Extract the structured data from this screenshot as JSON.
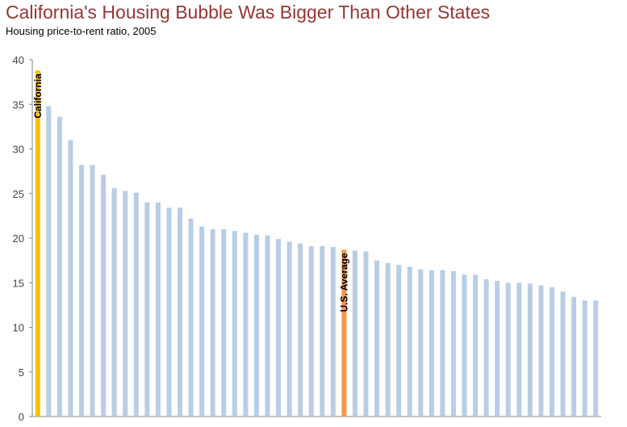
{
  "chart_data": {
    "type": "bar",
    "title": "California's Housing Bubble Was Bigger Than Other States",
    "subtitle": "Housing price-to-rent ratio, 2005",
    "xlabel": "",
    "ylabel": "",
    "ylim": [
      0,
      40
    ],
    "yticks": [
      "0",
      "5",
      "10",
      "15",
      "20",
      "25",
      "30",
      "35",
      "40"
    ],
    "grid": false,
    "values": [
      38.8,
      34.8,
      33.6,
      31.0,
      28.2,
      28.2,
      27.1,
      25.6,
      25.3,
      25.1,
      24.0,
      24.0,
      23.4,
      23.4,
      22.2,
      21.3,
      21.0,
      21.0,
      20.8,
      20.6,
      20.4,
      20.3,
      19.9,
      19.6,
      19.4,
      19.1,
      19.1,
      19.0,
      18.7,
      18.6,
      18.5,
      17.5,
      17.2,
      17.0,
      16.8,
      16.5,
      16.4,
      16.4,
      16.3,
      15.9,
      15.9,
      15.4,
      15.2,
      15.0,
      15.0,
      14.9,
      14.7,
      14.5,
      14.0,
      13.4,
      13.0,
      13.0
    ],
    "highlights": [
      {
        "index": 0,
        "label": "California",
        "color": "#FFC000"
      },
      {
        "index": 28,
        "label": "U.S. Average",
        "color": "#F79646"
      }
    ],
    "default_color": "#B9CDE5",
    "axis_color": "#868686"
  }
}
